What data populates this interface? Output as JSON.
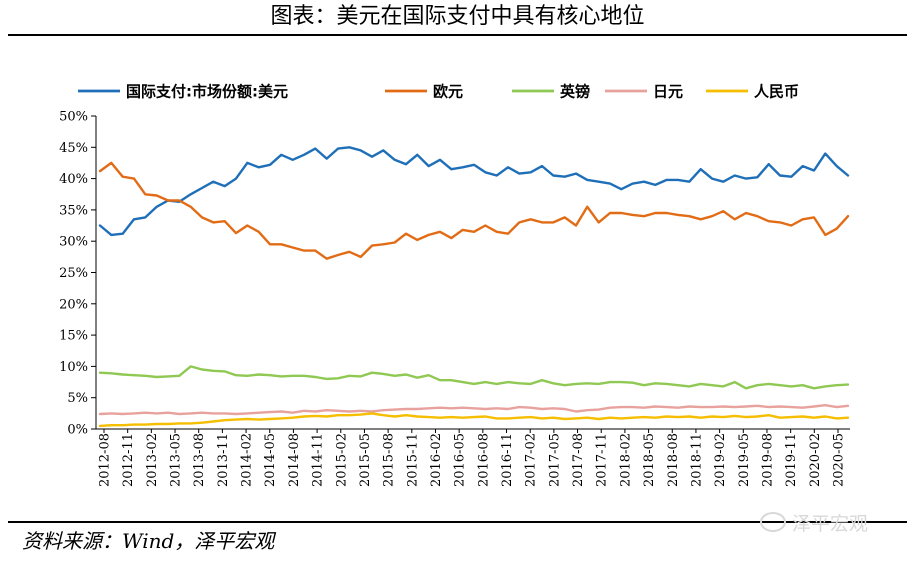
{
  "header": {
    "title": "图表：美元在国际支付中具有核心地位"
  },
  "footer": {
    "source": "资料来源：Wind，泽平宏观",
    "watermark": "泽平宏观"
  },
  "chart_data": {
    "type": "line",
    "title": "图表：美元在国际支付中具有核心地位",
    "xlabel": "",
    "ylabel": "",
    "ylim": [
      0,
      50
    ],
    "y_ticks": [
      "0%",
      "5%",
      "10%",
      "15%",
      "20%",
      "25%",
      "30%",
      "35%",
      "40%",
      "45%",
      "50%"
    ],
    "grid": false,
    "legend_position": "top",
    "x_ticks": [
      "2012-08",
      "2012-11",
      "2013-02",
      "2013-05",
      "2013-08",
      "2013-11",
      "2014-02",
      "2014-05",
      "2014-08",
      "2014-11",
      "2015-02",
      "2015-05",
      "2015-08",
      "2015-11",
      "2016-02",
      "2016-05",
      "2016-08",
      "2016-11",
      "2017-02",
      "2017-05",
      "2017-08",
      "2017-11",
      "2018-02",
      "2018-05",
      "2018-08",
      "2018-11",
      "2019-02",
      "2019-05",
      "2019-08",
      "2019-11",
      "2020-02",
      "2020-05"
    ],
    "series": [
      {
        "name": "国际支付:市场份额:美元",
        "color": "#1f6fb8",
        "values": [
          32.5,
          31.0,
          31.2,
          33.5,
          33.8,
          35.5,
          36.5,
          36.3,
          37.5,
          38.5,
          39.5,
          38.8,
          40.0,
          42.5,
          41.8,
          42.2,
          43.8,
          43.0,
          43.8,
          44.8,
          43.2,
          44.8,
          45.0,
          44.5,
          43.5,
          44.5,
          43.0,
          42.3,
          43.8,
          42.0,
          43.0,
          41.5,
          41.8,
          42.2,
          41.0,
          40.5,
          41.8,
          40.8,
          41.0,
          42.0,
          40.5,
          40.3,
          40.8,
          39.8,
          39.5,
          39.2,
          38.3,
          39.2,
          39.5,
          39.0,
          39.8,
          39.8,
          39.5,
          41.5,
          40.0,
          39.5,
          40.5,
          40.0,
          40.2,
          42.3,
          40.5,
          40.3,
          42.0,
          41.3,
          44.0,
          42.0,
          40.5
        ]
      },
      {
        "name": "欧元",
        "color": "#e26c16",
        "values": [
          41.2,
          42.5,
          40.3,
          40.0,
          37.5,
          37.3,
          36.5,
          36.5,
          35.5,
          33.8,
          33.0,
          33.2,
          31.3,
          32.5,
          31.5,
          29.5,
          29.5,
          29.0,
          28.5,
          28.5,
          27.2,
          27.8,
          28.3,
          27.5,
          29.3,
          29.5,
          29.8,
          31.2,
          30.2,
          31.0,
          31.5,
          30.5,
          31.8,
          31.5,
          32.5,
          31.5,
          31.2,
          33.0,
          33.5,
          33.0,
          33.0,
          33.8,
          32.5,
          35.5,
          33.0,
          34.5,
          34.5,
          34.2,
          34.0,
          34.5,
          34.5,
          34.2,
          34.0,
          33.5,
          34.0,
          34.8,
          33.5,
          34.5,
          34.0,
          33.2,
          33.0,
          32.5,
          33.5,
          33.8,
          31.0,
          32.0,
          34.0
        ]
      },
      {
        "name": "英镑",
        "color": "#8fc852",
        "values": [
          9.0,
          8.9,
          8.7,
          8.6,
          8.5,
          8.3,
          8.4,
          8.5,
          10.0,
          9.5,
          9.3,
          9.2,
          8.6,
          8.5,
          8.7,
          8.6,
          8.4,
          8.5,
          8.5,
          8.3,
          8.0,
          8.1,
          8.5,
          8.4,
          9.0,
          8.8,
          8.5,
          8.7,
          8.2,
          8.6,
          7.8,
          7.8,
          7.5,
          7.2,
          7.5,
          7.2,
          7.5,
          7.3,
          7.2,
          7.8,
          7.3,
          7.0,
          7.2,
          7.3,
          7.2,
          7.5,
          7.5,
          7.4,
          7.0,
          7.3,
          7.2,
          7.0,
          6.8,
          7.2,
          7.0,
          6.8,
          7.5,
          6.5,
          7.0,
          7.2,
          7.0,
          6.8,
          7.0,
          6.5,
          6.8,
          7.0,
          7.1
        ]
      },
      {
        "name": "日元",
        "color": "#e8a29e",
        "values": [
          2.4,
          2.5,
          2.4,
          2.5,
          2.6,
          2.5,
          2.6,
          2.4,
          2.5,
          2.6,
          2.5,
          2.5,
          2.4,
          2.5,
          2.6,
          2.7,
          2.8,
          2.6,
          2.9,
          2.8,
          3.0,
          2.9,
          2.8,
          2.9,
          2.8,
          3.0,
          3.1,
          3.2,
          3.2,
          3.3,
          3.4,
          3.3,
          3.4,
          3.3,
          3.2,
          3.3,
          3.2,
          3.5,
          3.4,
          3.2,
          3.3,
          3.2,
          2.8,
          3.0,
          3.1,
          3.4,
          3.5,
          3.5,
          3.4,
          3.6,
          3.5,
          3.4,
          3.6,
          3.5,
          3.5,
          3.6,
          3.5,
          3.6,
          3.7,
          3.5,
          3.6,
          3.5,
          3.4,
          3.6,
          3.8,
          3.5,
          3.7
        ]
      },
      {
        "name": "人民币",
        "color": "#f5be00",
        "values": [
          0.5,
          0.6,
          0.6,
          0.7,
          0.7,
          0.8,
          0.8,
          0.9,
          0.9,
          1.0,
          1.2,
          1.4,
          1.5,
          1.6,
          1.5,
          1.6,
          1.7,
          1.8,
          2.0,
          2.1,
          2.0,
          2.2,
          2.2,
          2.3,
          2.5,
          2.2,
          2.0,
          2.2,
          2.0,
          1.9,
          1.8,
          1.9,
          1.8,
          1.9,
          2.0,
          1.7,
          1.7,
          1.8,
          1.9,
          1.7,
          1.8,
          1.6,
          1.7,
          1.8,
          1.6,
          1.8,
          1.7,
          1.8,
          1.9,
          1.8,
          2.0,
          1.9,
          2.0,
          1.8,
          2.0,
          1.9,
          2.1,
          1.9,
          2.0,
          2.2,
          1.8,
          1.9,
          2.0,
          1.8,
          2.0,
          1.7,
          1.8
        ]
      }
    ]
  }
}
